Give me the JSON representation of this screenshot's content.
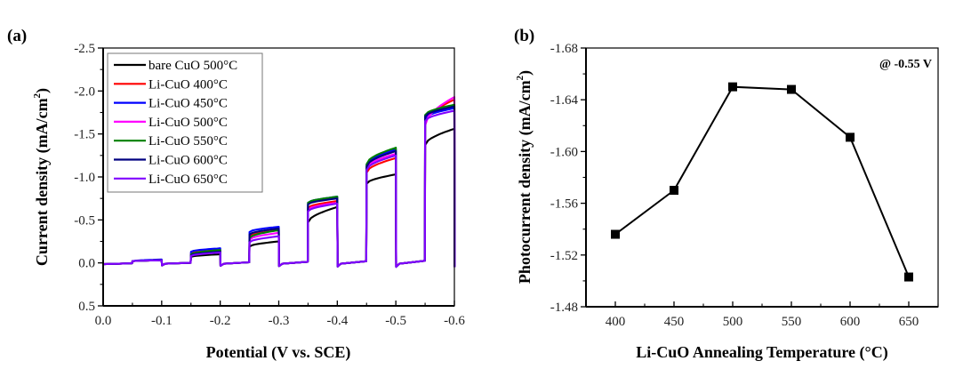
{
  "chart_data": [
    {
      "panel": "(a)",
      "type": "line",
      "title": "",
      "xlabel": "Potential (V vs. SCE)",
      "ylabel": "Current density (mA/cm2)",
      "ylabel_main": "Current density (mA/cm",
      "ylabel_sup": "2",
      "ylabel_close": ")",
      "xlim": [
        0.0,
        -0.6
      ],
      "ylim": [
        0.5,
        -2.5
      ],
      "x_ticks": [
        0.0,
        -0.1,
        -0.2,
        -0.3,
        -0.4,
        -0.5,
        -0.6
      ],
      "x_tick_labels": [
        "0.0",
        "-0.1",
        "-0.2",
        "-0.3",
        "-0.4",
        "-0.5",
        "-0.6"
      ],
      "y_ticks": [
        -2.5,
        -2.0,
        -1.5,
        -1.0,
        -0.5,
        0.0,
        0.5
      ],
      "y_tick_labels": [
        "-2.5",
        "-2.0",
        "-1.5",
        "-1.0",
        "-0.5",
        "0.0",
        "0.5"
      ],
      "legend_position": "top-left",
      "light_on_intervals": [
        [
          -0.05,
          -0.1
        ],
        [
          -0.15,
          -0.2
        ],
        [
          -0.25,
          -0.3
        ],
        [
          -0.35,
          -0.4
        ],
        [
          -0.45,
          -0.5
        ],
        [
          -0.55,
          -0.6
        ]
      ],
      "series": [
        {
          "name": "bare CuO 500°C",
          "color": "#000000",
          "steps": [
            [
              -0.02,
              -0.03
            ],
            [
              -0.07,
              -0.1
            ],
            [
              -0.19,
              -0.25
            ],
            [
              -0.47,
              -0.65
            ],
            [
              -0.92,
              -1.03
            ],
            [
              -1.37,
              -1.56
            ]
          ]
        },
        {
          "name": "Li-CuO 400°C",
          "color": "#ff0000",
          "steps": [
            [
              -0.02,
              -0.03
            ],
            [
              -0.11,
              -0.15
            ],
            [
              -0.31,
              -0.38
            ],
            [
              -0.64,
              -0.72
            ],
            [
              -1.05,
              -1.22
            ],
            [
              -1.62,
              -1.9
            ]
          ]
        },
        {
          "name": "Li-CuO 450°C",
          "color": "#0000ff",
          "steps": [
            [
              -0.02,
              -0.04
            ],
            [
              -0.13,
              -0.17
            ],
            [
              -0.36,
              -0.42
            ],
            [
              -0.7,
              -0.77
            ],
            [
              -1.14,
              -1.32
            ],
            [
              -1.68,
              -1.8
            ]
          ]
        },
        {
          "name": "Li-CuO 500°C",
          "color": "#ff00ff",
          "steps": [
            [
              -0.02,
              -0.03
            ],
            [
              -0.1,
              -0.14
            ],
            [
              -0.27,
              -0.35
            ],
            [
              -0.62,
              -0.7
            ],
            [
              -1.1,
              -1.27
            ],
            [
              -1.6,
              -1.93
            ]
          ]
        },
        {
          "name": "Li-CuO 550°C",
          "color": "#008000",
          "steps": [
            [
              -0.02,
              -0.03
            ],
            [
              -0.1,
              -0.15
            ],
            [
              -0.29,
              -0.38
            ],
            [
              -0.7,
              -0.77
            ],
            [
              -1.15,
              -1.34
            ],
            [
              -1.72,
              -1.84
            ]
          ]
        },
        {
          "name": "Li-CuO 600°C",
          "color": "#000080",
          "steps": [
            [
              -0.02,
              -0.03
            ],
            [
              -0.09,
              -0.13
            ],
            [
              -0.33,
              -0.4
            ],
            [
              -0.68,
              -0.75
            ],
            [
              -1.12,
              -1.3
            ],
            [
              -1.7,
              -1.82
            ]
          ]
        },
        {
          "name": "Li-CuO 650°C",
          "color": "#8000ff",
          "steps": [
            [
              -0.02,
              -0.03
            ],
            [
              -0.08,
              -0.12
            ],
            [
              -0.24,
              -0.31
            ],
            [
              -0.6,
              -0.69
            ],
            [
              -1.08,
              -1.25
            ],
            [
              -1.65,
              -1.77
            ]
          ]
        }
      ]
    },
    {
      "panel": "(b)",
      "type": "line",
      "title": "",
      "xlabel": "Li-CuO Annealing Temperature (°C)",
      "ylabel": "Photocurrent density (mA/cm2)",
      "ylabel_main": "Photocurrent density (mA/cm",
      "ylabel_sup": "2",
      "ylabel_close": ")",
      "annotation": "@ -0.55 V",
      "xlim": [
        375,
        675
      ],
      "ylim": [
        -1.48,
        -1.68
      ],
      "x_ticks": [
        400,
        450,
        500,
        550,
        600,
        650
      ],
      "x_tick_labels": [
        "400",
        "450",
        "500",
        "550",
        "600",
        "650"
      ],
      "y_ticks": [
        -1.48,
        -1.52,
        -1.56,
        -1.6,
        -1.64,
        -1.68
      ],
      "y_tick_labels": [
        "-1.48",
        "-1.52",
        "-1.56",
        "-1.60",
        "-1.64",
        "-1.68"
      ],
      "marker": "square",
      "series": [
        {
          "name": "Photocurrent @ -0.55 V",
          "color": "#000000",
          "x": [
            400,
            450,
            500,
            550,
            600,
            650
          ],
          "y": [
            -1.536,
            -1.57,
            -1.65,
            -1.648,
            -1.611,
            -1.503
          ]
        }
      ]
    }
  ]
}
